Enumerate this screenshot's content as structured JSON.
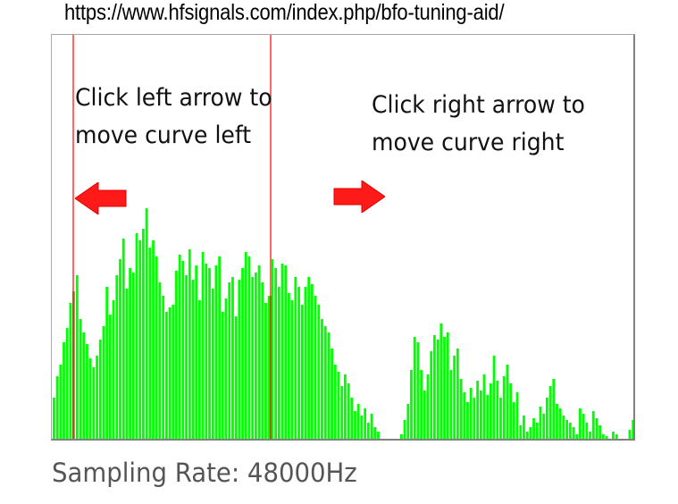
{
  "url_caption": "https://www.hfsignals.com/index.php/bfo-tuning-aid/",
  "instructions": {
    "left": {
      "line1": "Click left arrow to",
      "line2": "move curve left"
    },
    "right": {
      "line1": "Click right arrow to",
      "line2": "move curve right"
    }
  },
  "arrows": {
    "left_icon": "arrow-left-icon",
    "right_icon": "arrow-right-icon",
    "color": "#ff1a1a"
  },
  "sampling_rate_label": "Sampling Rate: 48000Hz",
  "colors": {
    "spectrum": "#00ff00",
    "marker": "#ff6666",
    "marker_overlap": "#b05a00",
    "frame": "#808080"
  },
  "spectrum": {
    "levels": [
      0.18,
      0.27,
      0.32,
      0.42,
      0.48,
      0.59,
      0.64,
      0.71,
      0.52,
      0.46,
      0.41,
      0.35,
      0.31,
      0.36,
      0.43,
      0.49,
      0.66,
      0.54,
      0.6,
      0.71,
      0.78,
      0.87,
      0.65,
      0.74,
      0.72,
      0.89,
      0.86,
      0.91,
      1.0,
      0.83,
      0.86,
      0.79,
      0.68,
      0.62,
      0.55,
      0.57,
      0.58,
      0.73,
      0.8,
      0.77,
      0.71,
      0.82,
      0.69,
      0.75,
      0.6,
      0.81,
      0.76,
      0.74,
      0.65,
      0.75,
      0.79,
      0.55,
      0.61,
      0.68,
      0.7,
      0.53,
      0.69,
      0.74,
      0.81,
      0.79,
      0.7,
      0.72,
      0.75,
      0.68,
      0.59,
      0.62,
      0.78,
      0.74,
      0.66,
      0.76,
      0.75,
      0.63,
      0.6,
      0.7,
      0.66,
      0.58,
      0.66,
      0.7,
      0.67,
      0.62,
      0.58,
      0.52,
      0.49,
      0.46,
      0.39,
      0.32,
      0.29,
      0.23,
      0.28,
      0.24,
      0.18,
      0.12,
      0.15,
      0.1,
      0.13,
      0.07,
      0.11,
      0.05,
      0.03,
      0.0,
      0.0,
      0.0,
      0.0,
      0.0,
      0.0,
      0.02,
      0.08,
      0.15,
      0.3,
      0.44,
      0.42,
      0.3,
      0.21,
      0.28,
      0.38,
      0.45,
      0.43,
      0.5,
      0.44,
      0.46,
      0.3,
      0.36,
      0.39,
      0.26,
      0.2,
      0.16,
      0.22,
      0.18,
      0.25,
      0.21,
      0.28,
      0.19,
      0.24,
      0.36,
      0.25,
      0.18,
      0.27,
      0.32,
      0.24,
      0.16,
      0.2,
      0.06,
      0.1,
      0.03,
      0.05,
      0.09,
      0.07,
      0.14,
      0.11,
      0.18,
      0.23,
      0.26,
      0.15,
      0.13,
      0.1,
      0.08,
      0.07,
      0.05,
      0.02,
      0.13,
      0.11,
      0.07,
      0.03,
      0.12,
      0.09,
      0.06,
      0.02,
      0.01,
      0.0,
      0.03,
      0.02,
      0.0,
      0.0,
      0.0,
      0.04,
      0.08
    ]
  }
}
